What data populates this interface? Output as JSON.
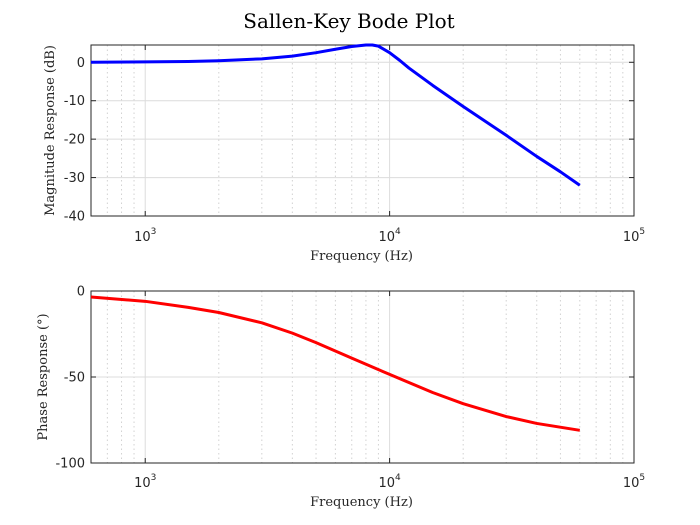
{
  "figure_title": "Sallen-Key Bode Plot",
  "chart_data": [
    {
      "type": "line",
      "xlabel": "Frequency (Hz)",
      "ylabel": "Magnitude Response (dB)",
      "xscale": "log",
      "xlim": [
        600,
        100000
      ],
      "ylim": [
        -40,
        4.5
      ],
      "xticks": [
        1000,
        10000,
        100000
      ],
      "xtick_labels": [
        {
          "base": "10",
          "exp": "3"
        },
        {
          "base": "10",
          "exp": "4"
        },
        {
          "base": "10",
          "exp": "5"
        }
      ],
      "yticks": [
        0,
        -10,
        -20,
        -30,
        -40
      ],
      "ytick_labels": [
        "0",
        "-10",
        "-20",
        "-30",
        "-40"
      ],
      "grid": true,
      "series": [
        {
          "color": "#0000ff",
          "x": [
            600,
            1000,
            1500,
            2000,
            3000,
            4000,
            5000,
            6000,
            7000,
            8000,
            8500,
            9000,
            10000,
            11000,
            12000,
            15000,
            20000,
            30000,
            40000,
            50000,
            60000
          ],
          "y": [
            0.0,
            0.1,
            0.2,
            0.4,
            0.9,
            1.6,
            2.5,
            3.4,
            4.1,
            4.5,
            4.5,
            4.2,
            2.5,
            0.5,
            -1.5,
            -6.0,
            -11.5,
            -19.0,
            -24.5,
            -28.5,
            -32.0
          ]
        }
      ]
    },
    {
      "type": "line",
      "xlabel": "Frequency (Hz)",
      "ylabel": "Phase Response (°)",
      "xscale": "log",
      "xlim": [
        600,
        100000
      ],
      "ylim": [
        -100,
        0
      ],
      "xticks": [
        1000,
        10000,
        100000
      ],
      "xtick_labels": [
        {
          "base": "10",
          "exp": "3"
        },
        {
          "base": "10",
          "exp": "4"
        },
        {
          "base": "10",
          "exp": "5"
        }
      ],
      "yticks": [
        0,
        -50,
        -100
      ],
      "ytick_labels": [
        "0",
        "-50",
        "-100"
      ],
      "grid": true,
      "series": [
        {
          "color": "#ff0000",
          "x": [
            600,
            1000,
            1500,
            2000,
            3000,
            4000,
            5000,
            7000,
            10000,
            15000,
            20000,
            30000,
            40000,
            60000
          ],
          "y": [
            -3.5,
            -6.0,
            -9.5,
            -12.5,
            -18.5,
            -24.5,
            -30.0,
            -39.0,
            -48.5,
            -59.0,
            -65.5,
            -73.0,
            -77.0,
            -81.0
          ]
        }
      ]
    }
  ]
}
